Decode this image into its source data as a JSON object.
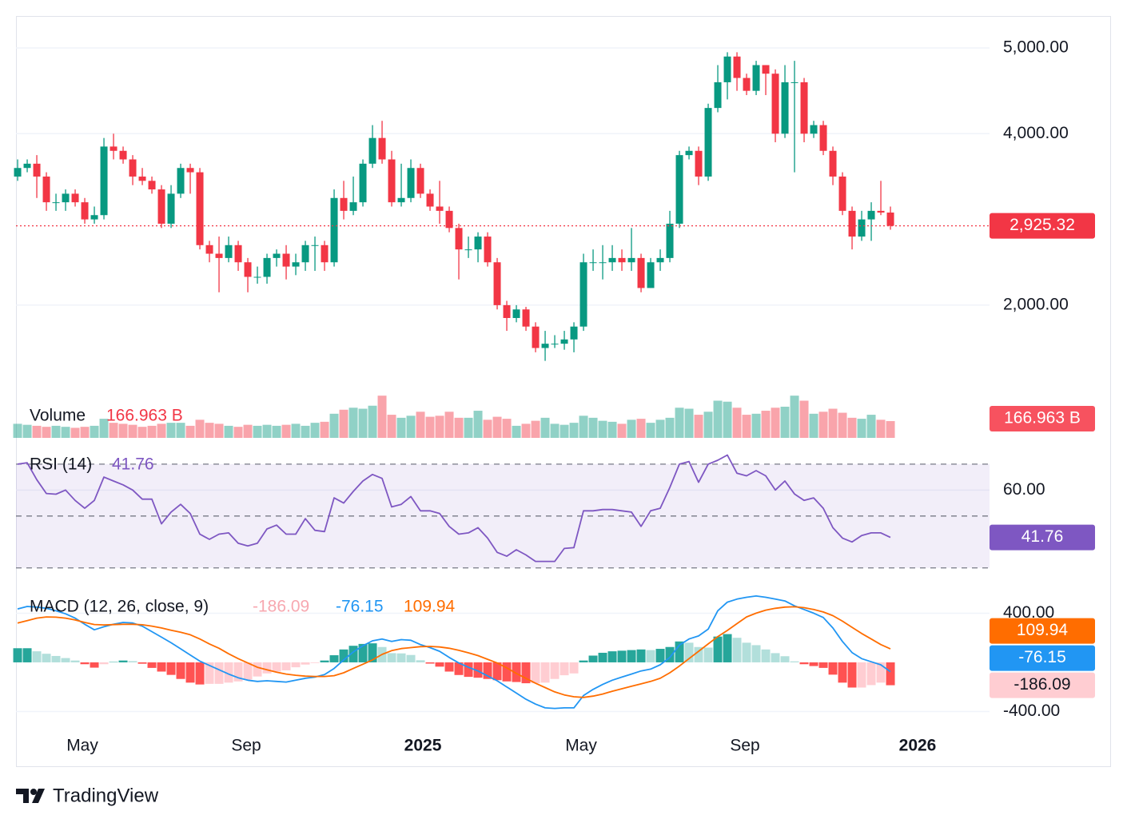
{
  "chart_data": [
    {
      "type": "candlestick",
      "open": [
        3500,
        3600,
        3650,
        3500,
        3200,
        3200,
        3300,
        3200,
        3000,
        3050,
        3850,
        3800,
        3700,
        3500,
        3450,
        3350,
        2950,
        3300,
        3600,
        3550,
        2700,
        2600,
        2550,
        2700,
        2500,
        2330,
        2330,
        2550,
        2600,
        2450,
        2500,
        2700,
        2700,
        2500,
        3250,
        3100,
        3200,
        3650,
        3950,
        3700,
        3200,
        3250,
        3600,
        3300,
        3150,
        3100,
        2900,
        2650,
        2650,
        2800,
        2500,
        2000,
        1850,
        1950,
        1750,
        1500,
        1550,
        1550,
        1600,
        1750,
        2500,
        2500,
        2500,
        2550,
        2500,
        2550,
        2200,
        2500,
        2550,
        2950,
        3750,
        3800,
        3500,
        4300,
        4600,
        4900,
        4650,
        4500,
        4800,
        4700,
        4000,
        4600,
        4600,
        4000,
        4100,
        3800,
        3500,
        3100,
        2800,
        3000,
        3100,
        3080
      ],
      "high": [
        3700,
        3700,
        3750,
        3550,
        3300,
        3350,
        3350,
        3250,
        3150,
        3950,
        4000,
        3850,
        3750,
        3600,
        3500,
        3400,
        3400,
        3650,
        3650,
        3600,
        2750,
        2800,
        2800,
        2750,
        2550,
        2450,
        2600,
        2650,
        2700,
        2600,
        2750,
        2800,
        2750,
        3350,
        3450,
        3500,
        3700,
        4100,
        4150,
        3800,
        3650,
        3700,
        3650,
        3350,
        3450,
        3150,
        2950,
        2800,
        2850,
        2850,
        2550,
        2050,
        2000,
        1980,
        1800,
        1700,
        1650,
        1700,
        1800,
        2600,
        2650,
        2700,
        2700,
        2650,
        2900,
        2600,
        2550,
        2650,
        3100,
        3800,
        3850,
        3850,
        4350,
        4800,
        4950,
        4950,
        4700,
        4850,
        4800,
        4750,
        4800,
        4850,
        4650,
        4150,
        4150,
        3850,
        3550,
        3150,
        3100,
        3200,
        3450,
        3150
      ],
      "low": [
        3450,
        3550,
        3250,
        3100,
        3100,
        3100,
        3150,
        2950,
        2950,
        3000,
        3700,
        3650,
        3400,
        3400,
        3300,
        2900,
        2900,
        3250,
        3300,
        2650,
        2500,
        2150,
        2500,
        2400,
        2150,
        2250,
        2250,
        2450,
        2300,
        2350,
        2400,
        2400,
        2400,
        2450,
        3000,
        3050,
        3150,
        3600,
        3650,
        3150,
        3150,
        3200,
        3250,
        3100,
        2950,
        2850,
        2300,
        2550,
        2500,
        2450,
        1950,
        1700,
        1800,
        1700,
        1450,
        1350,
        1500,
        1480,
        1450,
        1700,
        2400,
        2300,
        2400,
        2400,
        2400,
        2150,
        2200,
        2400,
        2500,
        2900,
        3700,
        3400,
        3450,
        4250,
        4400,
        4500,
        4450,
        4450,
        4450,
        3900,
        3950,
        3550,
        3900,
        3950,
        3750,
        3400,
        3050,
        2650,
        2750,
        2750,
        3050,
        2880
      ],
      "close": [
        3600,
        3650,
        3500,
        3200,
        3200,
        3300,
        3200,
        3000,
        3050,
        3850,
        3800,
        3700,
        3500,
        3450,
        3350,
        2950,
        3300,
        3600,
        3550,
        2700,
        2600,
        2550,
        2700,
        2500,
        2330,
        2330,
        2550,
        2600,
        2450,
        2500,
        2700,
        2700,
        2500,
        3250,
        3100,
        3200,
        3650,
        3950,
        3700,
        3200,
        3250,
        3600,
        3300,
        3150,
        3100,
        2900,
        2650,
        2650,
        2800,
        2500,
        2000,
        1850,
        1950,
        1750,
        1500,
        1550,
        1550,
        1600,
        1750,
        2500,
        2500,
        2500,
        2550,
        2500,
        2550,
        2200,
        2500,
        2550,
        2950,
        3750,
        3800,
        3500,
        4300,
        4600,
        4900,
        4650,
        4500,
        4800,
        4700,
        4000,
        4600,
        4600,
        4000,
        4100,
        3800,
        3500,
        3100,
        2800,
        3000,
        3100,
        3080,
        2925.32
      ],
      "value_labels": {
        "91": "2,925.32"
      },
      "up_color": "#089981",
      "down_color": "#f23645",
      "xlim": [
        -0.17,
        101.33
      ],
      "xticks": [
        {
          "value": 6.75,
          "label": "May"
        },
        {
          "value": 23.83,
          "label": "Sep"
        },
        {
          "value": 42.25,
          "label": "2025"
        },
        {
          "value": 58.75,
          "label": "May"
        },
        {
          "value": 75.83,
          "label": "Sep"
        },
        {
          "value": 93.83,
          "label": "2026"
        }
      ],
      "ylim": [
        1011,
        5373
      ],
      "yticks": [
        {
          "value": 5000,
          "label": "5,000.00"
        },
        {
          "value": 4000,
          "label": "4,000.00"
        },
        {
          "value": 2000,
          "label": "2,000.00"
        }
      ],
      "grid": true
    },
    {
      "type": "bar",
      "title": "Volume",
      "values": [
        140,
        130,
        120,
        110,
        120,
        110,
        100,
        110,
        120,
        190,
        150,
        140,
        130,
        110,
        120,
        140,
        150,
        150,
        120,
        180,
        150,
        140,
        120,
        110,
        130,
        120,
        130,
        120,
        130,
        140,
        120,
        150,
        160,
        240,
        280,
        300,
        290,
        320,
        420,
        230,
        200,
        220,
        260,
        210,
        220,
        260,
        200,
        200,
        270,
        180,
        210,
        190,
        120,
        140,
        170,
        200,
        140,
        130,
        150,
        220,
        200,
        170,
        160,
        140,
        180,
        190,
        150,
        180,
        200,
        300,
        290,
        230,
        260,
        370,
        360,
        300,
        230,
        240,
        270,
        300,
        310,
        420,
        370,
        240,
        260,
        290,
        250,
        200,
        190,
        230,
        180,
        166.963
      ],
      "value_labels": {
        "91": "166.963 B"
      },
      "up_color": "rgba(8,153,129,0.45)",
      "down_color": "rgba(242,54,69,0.45)",
      "badge_color": "#f7525f",
      "ylim": [
        0,
        477
      ]
    },
    {
      "type": "line",
      "series": [
        {
          "name": "RSI (14)",
          "color": "#7e57c2",
          "values": [
            70,
            70.5,
            64,
            58.7,
            58.4,
            60,
            56,
            53,
            56,
            65,
            63.5,
            62,
            60,
            56.5,
            56.5,
            47,
            51.5,
            54.5,
            51,
            43,
            41,
            43,
            43.5,
            39.5,
            38.5,
            39.5,
            45,
            46.5,
            43,
            43,
            49,
            44.5,
            44,
            57,
            55,
            59.5,
            63.5,
            66,
            64.5,
            53.5,
            54.5,
            57.5,
            52,
            52,
            51,
            46,
            43,
            43.5,
            45.5,
            41.5,
            36,
            34.5,
            37,
            35,
            32.5,
            32.5,
            32.5,
            37.5,
            37.8,
            52,
            52,
            52.5,
            52.5,
            52,
            51.5,
            46,
            52,
            53,
            61,
            70,
            71,
            63,
            70,
            71.5,
            73.5,
            66.5,
            65.5,
            67.5,
            65.5,
            60,
            63.5,
            58.5,
            56,
            57,
            53,
            45.5,
            41.5,
            40,
            42.5,
            43.5,
            43.5,
            41.76
          ]
        }
      ],
      "levels": [
        70,
        50,
        30
      ],
      "band_color": "rgba(126,87,194,0.1)",
      "ylim": [
        25,
        79.5
      ],
      "yticks": [
        {
          "value": 60,
          "label": "60.00"
        }
      ]
    },
    {
      "type": "line",
      "title": "MACD (12, 26, close, 9)",
      "series": [
        {
          "type": "histogram",
          "colors": [
            "#26a69a",
            "#b2dfdb",
            "#ff5252",
            "#ffcdd2"
          ],
          "color": "#ffcdd2",
          "values": [
            115,
            115,
            90,
            70,
            52,
            35,
            15,
            -15,
            -43,
            -15,
            3,
            15,
            10,
            -11,
            -45,
            -75,
            -102,
            -135,
            -165,
            -180,
            -175,
            -175,
            -165,
            -155,
            -140,
            -115,
            -90,
            -75,
            -65,
            -40,
            -18,
            -5,
            15,
            58,
            105,
            135,
            150,
            155,
            125,
            75,
            73,
            60,
            17,
            -10,
            -35,
            -75,
            -103,
            -118,
            -125,
            -135,
            -145,
            -155,
            -160,
            -170,
            -170,
            -165,
            -135,
            -105,
            -90,
            15,
            55,
            78,
            90,
            95,
            100,
            105,
            100,
            110,
            125,
            170,
            160,
            125,
            120,
            210,
            230,
            200,
            160,
            140,
            105,
            75,
            50,
            8,
            -15,
            -30,
            -45,
            -100,
            -165,
            -205,
            -205,
            -185,
            -165,
            -186.09
          ]
        },
        {
          "type": "line",
          "color": "#2196f3",
          "values": [
            435,
            455,
            450,
            440,
            420,
            395,
            360,
            310,
            265,
            290,
            310,
            325,
            320,
            295,
            250,
            205,
            160,
            110,
            60,
            10,
            -25,
            -60,
            -95,
            -125,
            -145,
            -155,
            -150,
            -155,
            -160,
            -145,
            -130,
            -120,
            -100,
            -50,
            20,
            85,
            135,
            175,
            190,
            170,
            185,
            180,
            145,
            120,
            90,
            40,
            -5,
            -40,
            -70,
            -110,
            -150,
            -200,
            -250,
            -300,
            -340,
            -370,
            -375,
            -370,
            -370,
            -270,
            -220,
            -180,
            -145,
            -120,
            -95,
            -70,
            -55,
            -20,
            40,
            140,
            190,
            215,
            270,
            420,
            490,
            515,
            530,
            540,
            530,
            515,
            500,
            460,
            430,
            400,
            365,
            280,
            170,
            80,
            30,
            5,
            -20,
            -76.15
          ]
        },
        {
          "type": "line",
          "color": "#ff6d00",
          "values": [
            320,
            340,
            360,
            370,
            368,
            360,
            345,
            325,
            308,
            305,
            307,
            310,
            310,
            306,
            295,
            280,
            262,
            245,
            225,
            190,
            150,
            115,
            70,
            30,
            -5,
            -40,
            -60,
            -80,
            -95,
            -105,
            -112,
            -115,
            -115,
            -108,
            -85,
            -50,
            -15,
            20,
            65,
            95,
            112,
            120,
            128,
            130,
            125,
            115,
            98,
            78,
            55,
            25,
            -5,
            -45,
            -90,
            -130,
            -170,
            -205,
            -240,
            -265,
            -280,
            -285,
            -275,
            -258,
            -235,
            -215,
            -195,
            -175,
            -155,
            -130,
            -85,
            -30,
            30,
            90,
            150,
            210,
            260,
            315,
            370,
            400,
            425,
            440,
            450,
            452,
            445,
            430,
            410,
            380,
            335,
            285,
            235,
            190,
            145,
            109.94
          ]
        }
      ],
      "ylim": [
        -527,
        663
      ],
      "yticks": [
        {
          "value": 400,
          "label": "400.00"
        },
        {
          "value": -400,
          "label": "-400.00"
        }
      ]
    }
  ],
  "footer": {
    "brand": "TradingView"
  }
}
